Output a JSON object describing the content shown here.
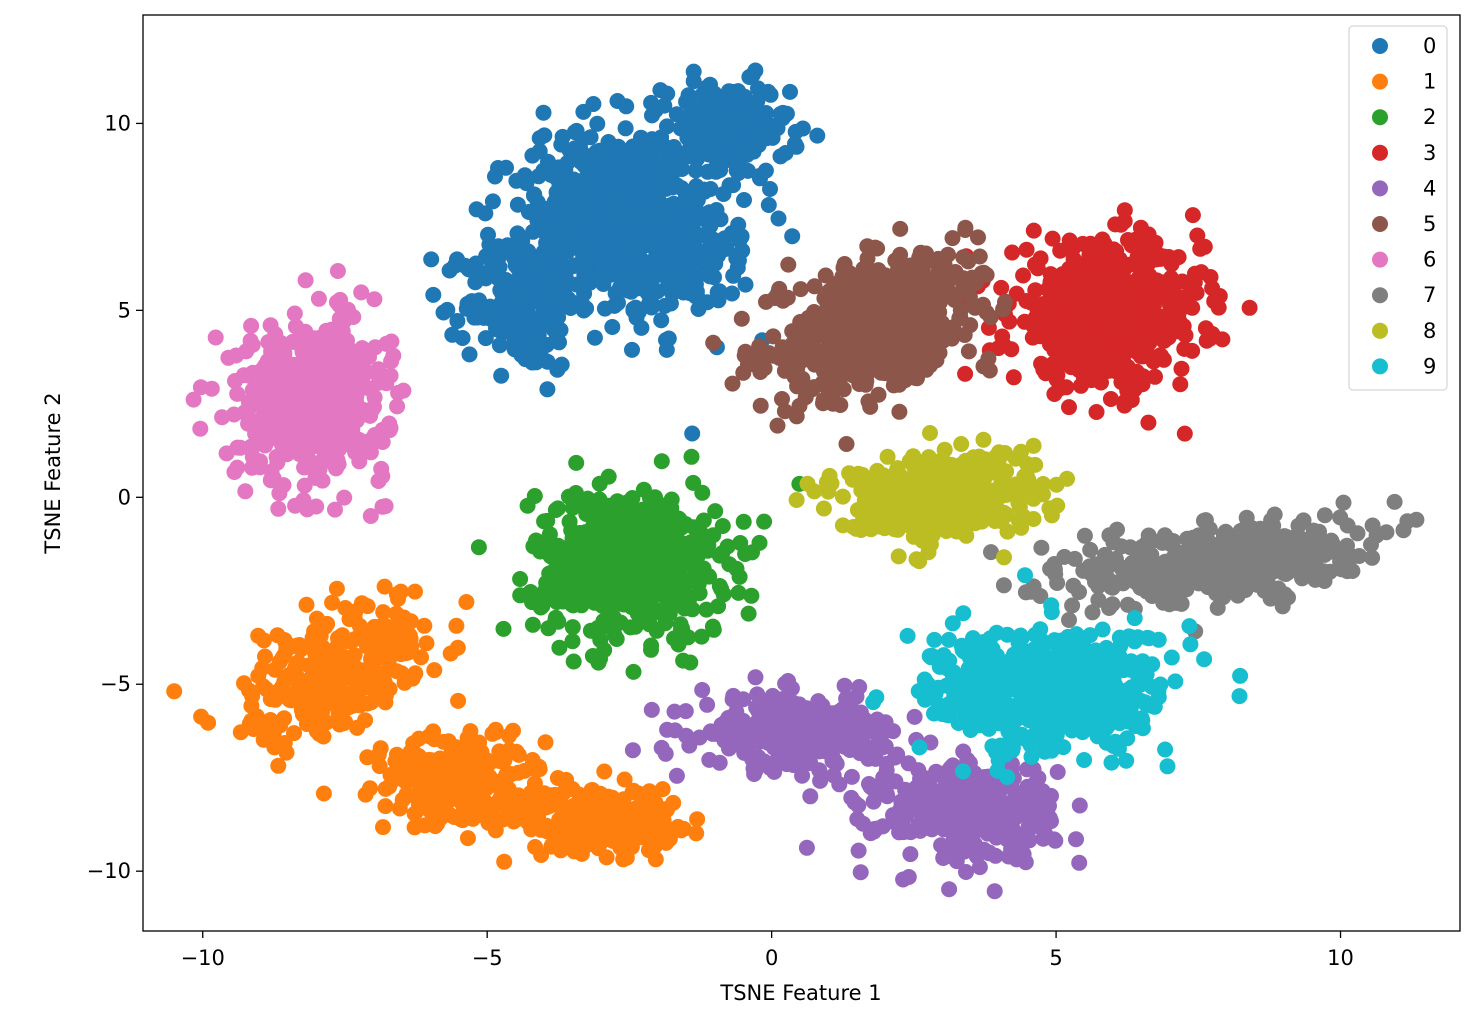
{
  "chart_data": {
    "type": "scatter",
    "title": "",
    "xlabel": "TSNE Feature 1",
    "ylabel": "TSNE Feature 2",
    "xlim": [
      -11.05,
      12.1
    ],
    "ylim": [
      -11.6,
      12.9
    ],
    "xticks": [
      -10,
      -5,
      0,
      5,
      10
    ],
    "xtick_labels": [
      "−10",
      "−5",
      "0",
      "5",
      "10"
    ],
    "yticks": [
      -10,
      -5,
      0,
      5,
      10
    ],
    "ytick_labels": [
      "−10",
      "−5",
      "0",
      "5",
      "10"
    ],
    "grid": false,
    "legend_position": "top-right",
    "marker": "filled circle",
    "series": [
      {
        "name": "0",
        "color": "#1f77b4",
        "clusters": [
          {
            "cx": -2.5,
            "cy": 7.3,
            "sx": 1.6,
            "sy": 2.4,
            "rot": 25,
            "n": 620
          },
          {
            "cx": -0.8,
            "cy": 9.8,
            "sx": 1.0,
            "sy": 1.2,
            "rot": 0,
            "n": 200
          },
          {
            "cx": -4.4,
            "cy": 5.2,
            "sx": 0.9,
            "sy": 1.6,
            "rot": 0,
            "n": 200
          }
        ]
      },
      {
        "name": "1",
        "color": "#ff7f0e",
        "clusters": [
          {
            "cx": -7.5,
            "cy": -4.6,
            "sx": 1.2,
            "sy": 1.9,
            "rot": -35,
            "n": 300
          },
          {
            "cx": -5.5,
            "cy": -7.6,
            "sx": 1.3,
            "sy": 1.1,
            "rot": -20,
            "n": 280
          },
          {
            "cx": -3.0,
            "cy": -8.6,
            "sx": 1.2,
            "sy": 0.8,
            "rot": 0,
            "n": 220
          }
        ]
      },
      {
        "name": "2",
        "color": "#2ca02c",
        "clusters": [
          {
            "cx": -2.5,
            "cy": -1.8,
            "sx": 1.5,
            "sy": 1.8,
            "rot": 0,
            "n": 620
          }
        ]
      },
      {
        "name": "3",
        "color": "#d62728",
        "clusters": [
          {
            "cx": 5.9,
            "cy": 4.9,
            "sx": 1.5,
            "sy": 1.7,
            "rot": 0,
            "n": 620
          }
        ]
      },
      {
        "name": "4",
        "color": "#9467bd",
        "clusters": [
          {
            "cx": 0.5,
            "cy": -6.3,
            "sx": 1.6,
            "sy": 0.9,
            "rot": 0,
            "n": 280
          },
          {
            "cx": 3.4,
            "cy": -8.4,
            "sx": 1.4,
            "sy": 1.2,
            "rot": 0,
            "n": 320
          }
        ]
      },
      {
        "name": "5",
        "color": "#8c564b",
        "clusters": [
          {
            "cx": 1.8,
            "cy": 4.6,
            "sx": 1.3,
            "sy": 2.0,
            "rot": -40,
            "n": 580
          }
        ]
      },
      {
        "name": "6",
        "color": "#e377c2",
        "clusters": [
          {
            "cx": -8.1,
            "cy": 2.6,
            "sx": 1.2,
            "sy": 1.9,
            "rot": 0,
            "n": 520
          }
        ]
      },
      {
        "name": "7",
        "color": "#7f7f7f",
        "clusters": [
          {
            "cx": 7.9,
            "cy": -1.7,
            "sx": 2.2,
            "sy": 0.9,
            "rot": 12,
            "n": 480
          }
        ]
      },
      {
        "name": "8",
        "color": "#bcbd22",
        "clusters": [
          {
            "cx": 2.9,
            "cy": 0.1,
            "sx": 1.6,
            "sy": 1.0,
            "rot": 10,
            "n": 420
          }
        ]
      },
      {
        "name": "9",
        "color": "#17becf",
        "clusters": [
          {
            "cx": 4.9,
            "cy": -5.2,
            "sx": 1.9,
            "sy": 1.5,
            "rot": 0,
            "n": 560
          }
        ]
      }
    ]
  }
}
